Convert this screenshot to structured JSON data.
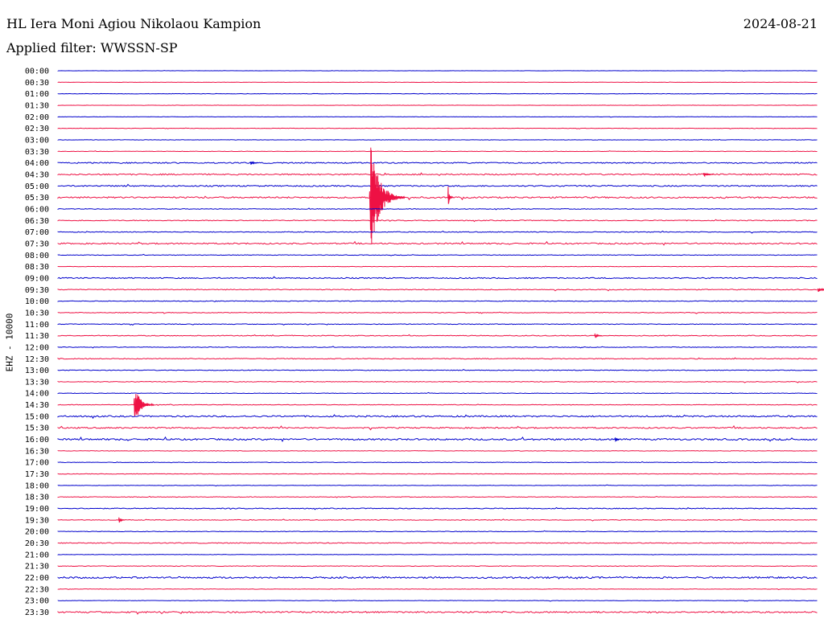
{
  "header": {
    "station": "HL Iera Moni Agiou Nikolaou Kampion",
    "date": "2024-08-21",
    "filter": "Applied filter: WWSSN-SP"
  },
  "colors": {
    "even_trace": "#0000cc",
    "odd_trace": "#ee1144",
    "text": "#000000",
    "background": "#ffffff"
  },
  "chart_data": {
    "type": "line",
    "ylabel": "EHZ - 10000",
    "rows": [
      "00:00",
      "00:30",
      "01:00",
      "01:30",
      "02:00",
      "02:30",
      "03:00",
      "03:30",
      "04:00",
      "04:30",
      "05:00",
      "05:30",
      "06:00",
      "06:30",
      "07:00",
      "07:30",
      "08:00",
      "08:30",
      "09:00",
      "09:30",
      "10:00",
      "10:30",
      "11:00",
      "11:30",
      "12:00",
      "12:30",
      "13:00",
      "13:30",
      "14:00",
      "14:30",
      "15:00",
      "15:30",
      "16:00",
      "16:30",
      "17:00",
      "17:30",
      "18:00",
      "18:30",
      "19:00",
      "19:30",
      "20:00",
      "20:30",
      "21:00",
      "21:30",
      "22:00",
      "22:30",
      "23:00",
      "23:30"
    ],
    "noise_level": [
      0.3,
      0.3,
      0.5,
      0.4,
      0.4,
      0.5,
      0.5,
      0.5,
      1.4,
      1.6,
      1.5,
      1.8,
      0.8,
      1.0,
      0.9,
      1.6,
      0.7,
      0.5,
      1.3,
      1.0,
      0.8,
      0.8,
      0.8,
      0.9,
      0.8,
      1.0,
      0.8,
      0.8,
      0.6,
      0.7,
      1.8,
      1.6,
      2.0,
      0.6,
      0.6,
      0.6,
      0.5,
      0.7,
      1.0,
      0.8,
      0.7,
      1.0,
      0.5,
      0.7,
      2.0,
      0.5,
      0.5,
      1.8
    ],
    "events": [
      {
        "row": "05:30",
        "minute": 12.3,
        "amplitude": 64,
        "duration_min": 1.4,
        "direction": "both"
      },
      {
        "row": "05:30",
        "minute": 15.4,
        "amplitude": 15,
        "duration_min": 0.2,
        "direction": "both"
      },
      {
        "row": "14:30",
        "minute": 3.0,
        "amplitude": 26,
        "duration_min": 0.8,
        "direction": "both"
      },
      {
        "row": "19:30",
        "minute": 2.4,
        "amplitude": 4,
        "duration_min": 0.25,
        "direction": "both"
      },
      {
        "row": "04:00",
        "minute": 7.6,
        "amplitude": 3,
        "duration_min": 0.3,
        "direction": "both"
      },
      {
        "row": "04:30",
        "minute": 25.5,
        "amplitude": 3,
        "duration_min": 0.4,
        "direction": "both"
      },
      {
        "row": "09:30",
        "minute": 30.0,
        "amplitude": 3,
        "duration_min": 0.5,
        "direction": "both"
      },
      {
        "row": "11:30",
        "minute": 21.2,
        "amplitude": 3,
        "duration_min": 0.3,
        "direction": "both"
      },
      {
        "row": "16:00",
        "minute": 22.0,
        "amplitude": 3,
        "duration_min": 0.2,
        "direction": "both"
      }
    ]
  }
}
